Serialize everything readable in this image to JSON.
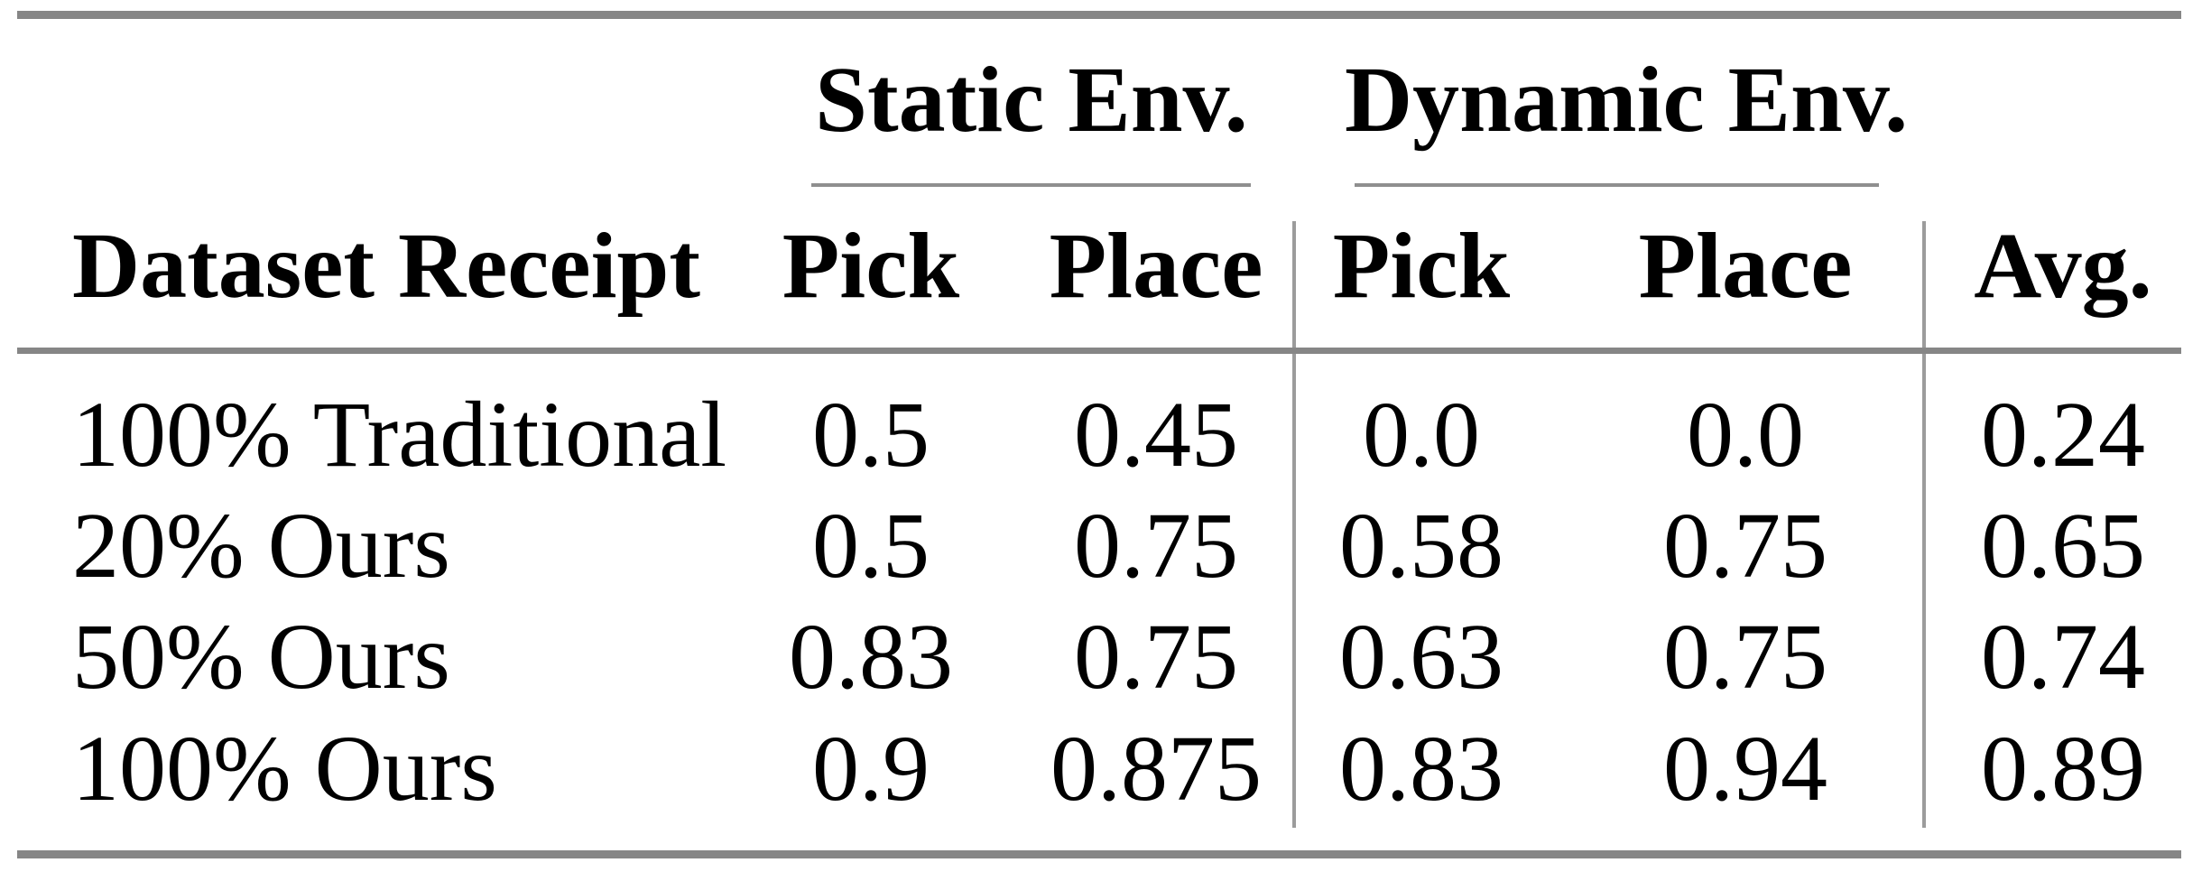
{
  "table": {
    "title_groups": {
      "static": "Static Env.",
      "dynamic": "Dynamic Env."
    },
    "headers": {
      "row_label": "Dataset Receipt",
      "static_pick": "Pick",
      "static_place": "Place",
      "dynamic_pick": "Pick",
      "dynamic_place": "Place",
      "avg": "Avg."
    },
    "rows": [
      {
        "label": "100% Traditional",
        "static_pick": "0.5",
        "static_place": "0.45",
        "dynamic_pick": "0.0",
        "dynamic_place": "0.0",
        "avg": "0.24"
      },
      {
        "label": "20% Ours",
        "static_pick": "0.5",
        "static_place": "0.75",
        "dynamic_pick": "0.58",
        "dynamic_place": "0.75",
        "avg": "0.65"
      },
      {
        "label": "50% Ours",
        "static_pick": "0.83",
        "static_place": "0.75",
        "dynamic_pick": "0.63",
        "dynamic_place": "0.75",
        "avg": "0.74"
      },
      {
        "label": "100% Ours",
        "static_pick": "0.9",
        "static_place": "0.875",
        "dynamic_pick": "0.83",
        "dynamic_place": "0.94",
        "avg": "0.89"
      }
    ],
    "colors": {
      "rule": "#868686",
      "cmidrule": "#8f8f8f",
      "separator": "#9c9c9c",
      "text": "#000000",
      "background": "#ffffff"
    }
  },
  "chart_data": {
    "type": "table",
    "columns": [
      "Dataset Receipt",
      "Static Env. Pick",
      "Static Env. Place",
      "Dynamic Env. Pick",
      "Dynamic Env. Place",
      "Avg."
    ],
    "rows": [
      [
        "100% Traditional",
        0.5,
        0.45,
        0.0,
        0.0,
        0.24
      ],
      [
        "20% Ours",
        0.5,
        0.75,
        0.58,
        0.75,
        0.65
      ],
      [
        "50% Ours",
        0.83,
        0.75,
        0.63,
        0.75,
        0.74
      ],
      [
        "100% Ours",
        0.9,
        0.875,
        0.83,
        0.94,
        0.89
      ]
    ]
  }
}
